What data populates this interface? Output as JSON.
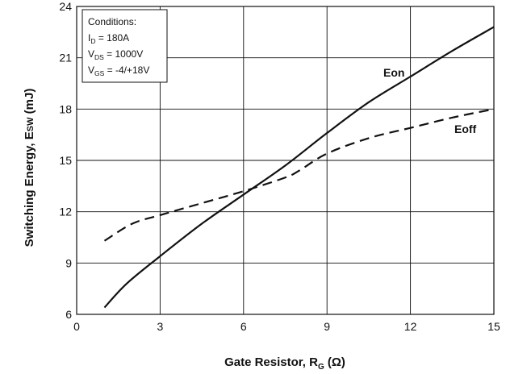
{
  "chart_data": {
    "type": "line",
    "xlabel": {
      "main": "Gate Resistor, R",
      "sub": "G",
      "unit": " (Ω)"
    },
    "ylabel": {
      "main": "Switching Energy, E",
      "sub": "SW",
      "unit": " (mJ)"
    },
    "xlim": [
      0,
      15
    ],
    "ylim": [
      6,
      24
    ],
    "xticks": [
      "0",
      "3",
      "6",
      "9",
      "12",
      "15"
    ],
    "yticks": [
      "6",
      "9",
      "12",
      "15",
      "18",
      "21",
      "24"
    ],
    "grid": true,
    "conditions": {
      "title": "Conditions:",
      "lines": [
        {
          "main": "I",
          "sub": "D",
          "rest": " = 180A"
        },
        {
          "main": "V",
          "sub": "DS",
          "rest": " = 1000V"
        },
        {
          "main": "V",
          "sub": "GS",
          "rest": " = -4/+18V"
        }
      ]
    },
    "series": [
      {
        "name": "Eon",
        "style": "solid",
        "x": [
          1,
          1.8,
          3,
          4.5,
          6,
          7.5,
          9,
          10.5,
          12,
          13.5,
          15
        ],
        "y": [
          6.4,
          7.8,
          9.4,
          11.3,
          13.0,
          14.7,
          16.6,
          18.4,
          19.9,
          21.4,
          22.8
        ]
      },
      {
        "name": "Eoff",
        "style": "dashed",
        "x": [
          1,
          2,
          3,
          4.5,
          6,
          7.5,
          8,
          9,
          10.5,
          12,
          13.5,
          15
        ],
        "y": [
          10.3,
          11.3,
          11.8,
          12.5,
          13.2,
          14.0,
          14.4,
          15.4,
          16.3,
          16.9,
          17.5,
          18.0
        ]
      }
    ]
  }
}
